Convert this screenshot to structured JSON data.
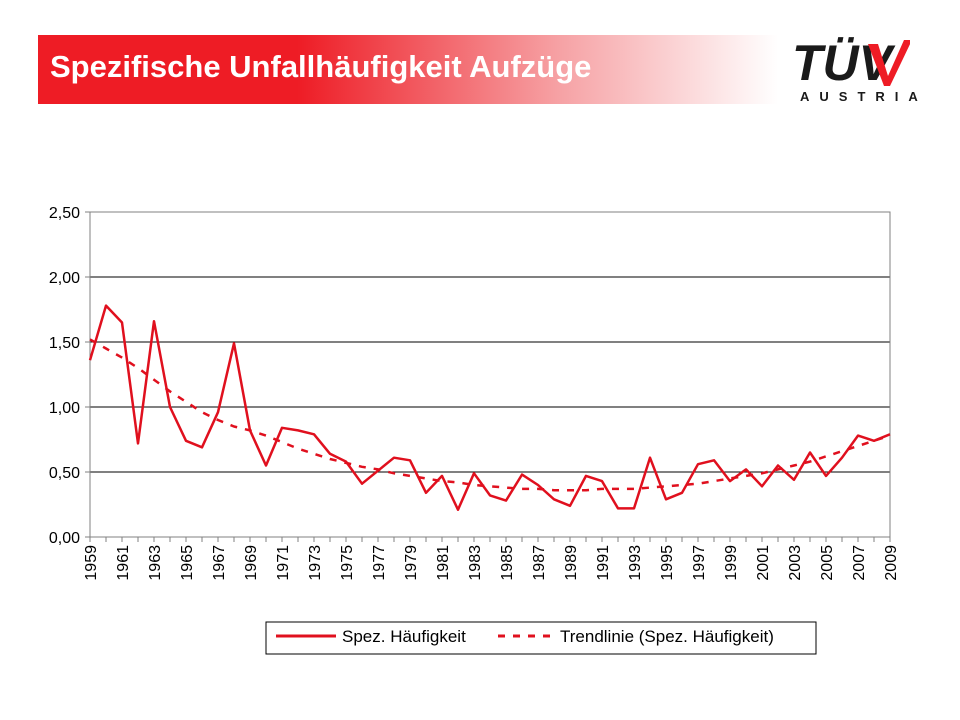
{
  "header": {
    "title": "Spezifische Unfallhäufigkeit Aufzüge",
    "logo_text": "TÜV",
    "logo_sub": "AUSTRIA",
    "accent_color": "#ee1c25"
  },
  "chart_data": {
    "type": "line",
    "title": "",
    "xlabel": "",
    "ylabel": "",
    "ylim": [
      0,
      2.5
    ],
    "yticks": [
      "0,00",
      "0,50",
      "1,00",
      "1,50",
      "2,00",
      "2,50"
    ],
    "ytick_values": [
      0,
      0.5,
      1.0,
      1.5,
      2.0,
      2.5
    ],
    "xticks": [
      "1959",
      "1961",
      "1963",
      "1965",
      "1967",
      "1969",
      "1971",
      "1973",
      "1975",
      "1977",
      "1979",
      "1981",
      "1983",
      "1985",
      "1987",
      "1989",
      "1991",
      "1993",
      "1995",
      "1997",
      "1999",
      "2001",
      "2003",
      "2005",
      "2007",
      "2009"
    ],
    "grid": "horizontal",
    "legend_position": "bottom",
    "x": [
      1959,
      1960,
      1961,
      1962,
      1963,
      1964,
      1965,
      1966,
      1967,
      1968,
      1969,
      1970,
      1971,
      1972,
      1973,
      1974,
      1975,
      1976,
      1977,
      1978,
      1979,
      1980,
      1981,
      1982,
      1983,
      1984,
      1985,
      1986,
      1987,
      1988,
      1989,
      1990,
      1991,
      1992,
      1993,
      1994,
      1995,
      1996,
      1997,
      1998,
      1999,
      2000,
      2001,
      2002,
      2003,
      2004,
      2005,
      2006,
      2007,
      2008,
      2009
    ],
    "series": [
      {
        "name": "Spez. Häufigkeit",
        "style": "solid",
        "color": "#e0101e",
        "values": [
          1.36,
          1.78,
          1.65,
          0.72,
          1.66,
          1.0,
          0.74,
          0.69,
          0.96,
          1.49,
          0.82,
          0.55,
          0.84,
          0.82,
          0.79,
          0.64,
          0.58,
          0.41,
          0.51,
          0.61,
          0.59,
          0.34,
          0.47,
          0.21,
          0.49,
          0.32,
          0.28,
          0.48,
          0.4,
          0.29,
          0.24,
          0.47,
          0.43,
          0.22,
          0.22,
          0.61,
          0.29,
          0.34,
          0.56,
          0.59,
          0.43,
          0.52,
          0.39,
          0.55,
          0.44,
          0.65,
          0.47,
          0.61,
          0.78,
          0.74,
          0.79
        ]
      },
      {
        "name": "Trendlinie (Spez. Häufigkeit)",
        "style": "dashed",
        "color": "#e0101e",
        "values": [
          1.52,
          1.45,
          1.38,
          1.3,
          1.21,
          1.12,
          1.04,
          0.96,
          0.9,
          0.85,
          0.82,
          0.78,
          0.73,
          0.68,
          0.64,
          0.6,
          0.57,
          0.54,
          0.52,
          0.49,
          0.47,
          0.45,
          0.43,
          0.42,
          0.4,
          0.39,
          0.38,
          0.37,
          0.37,
          0.36,
          0.36,
          0.36,
          0.37,
          0.37,
          0.37,
          0.38,
          0.39,
          0.4,
          0.41,
          0.43,
          0.45,
          0.47,
          0.49,
          0.52,
          0.55,
          0.58,
          0.62,
          0.66,
          0.7,
          0.74,
          0.78
        ]
      }
    ]
  }
}
